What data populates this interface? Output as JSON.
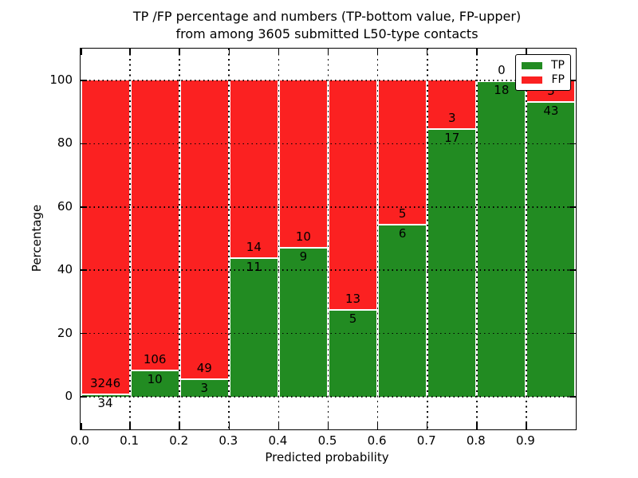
{
  "title": {
    "line1": "TP /FP percentage and numbers (TP-bottom value, FP-upper)",
    "line2": "from among 3605 submitted L50-type contacts"
  },
  "axes": {
    "xlabel": "Predicted probability",
    "ylabel": "Percentage",
    "x_tick_labels": [
      "0.0",
      "0.1",
      "0.2",
      "0.3",
      "0.4",
      "0.5",
      "0.6",
      "0.7",
      "0.8",
      "0.9"
    ],
    "y_tick_labels": [
      "0",
      "20",
      "40",
      "60",
      "80",
      "100"
    ]
  },
  "legend": {
    "position": "upper right",
    "entries": [
      {
        "label": "TP",
        "color": "#228b22"
      },
      {
        "label": "FP",
        "color": "#fb2121"
      }
    ]
  },
  "chart_data": {
    "type": "bar",
    "stacked": true,
    "normalized_to_percent": true,
    "title": "TP /FP percentage and numbers (TP-bottom value, FP-upper) from among 3605 submitted L50-type contacts",
    "xlabel": "Predicted probability",
    "ylabel": "Percentage",
    "total_contacts": 3605,
    "bin_width": 0.1,
    "bin_starts": [
      0.0,
      0.1,
      0.2,
      0.3,
      0.4,
      0.5,
      0.6,
      0.7,
      0.8,
      0.9
    ],
    "categories": [
      "0.0-0.1",
      "0.1-0.2",
      "0.2-0.3",
      "0.3-0.4",
      "0.4-0.5",
      "0.5-0.6",
      "0.6-0.7",
      "0.7-0.8",
      "0.8-0.9",
      "0.9-1.0"
    ],
    "series": [
      {
        "name": "TP",
        "color": "#228b22",
        "counts": [
          34,
          10,
          3,
          11,
          9,
          5,
          6,
          17,
          18,
          43
        ],
        "percent": [
          1.04,
          8.62,
          5.77,
          44.0,
          47.37,
          27.78,
          54.55,
          85.0,
          100.0,
          93.48
        ]
      },
      {
        "name": "FP",
        "color": "#fb2121",
        "counts": [
          3246,
          106,
          49,
          14,
          10,
          13,
          5,
          3,
          0,
          3
        ],
        "percent": [
          98.96,
          91.38,
          94.23,
          56.0,
          52.63,
          72.22,
          45.45,
          15.0,
          0.0,
          6.52
        ]
      }
    ],
    "y_ticks": [
      0,
      20,
      40,
      60,
      80,
      100
    ],
    "x_ticks": [
      0.0,
      0.1,
      0.2,
      0.3,
      0.4,
      0.5,
      0.6,
      0.7,
      0.8,
      0.9
    ],
    "ylim": [
      -10.3,
      110.3
    ],
    "xlim": [
      0.0,
      1.0
    ],
    "grid": "dotted",
    "legend_position": "upper right"
  }
}
